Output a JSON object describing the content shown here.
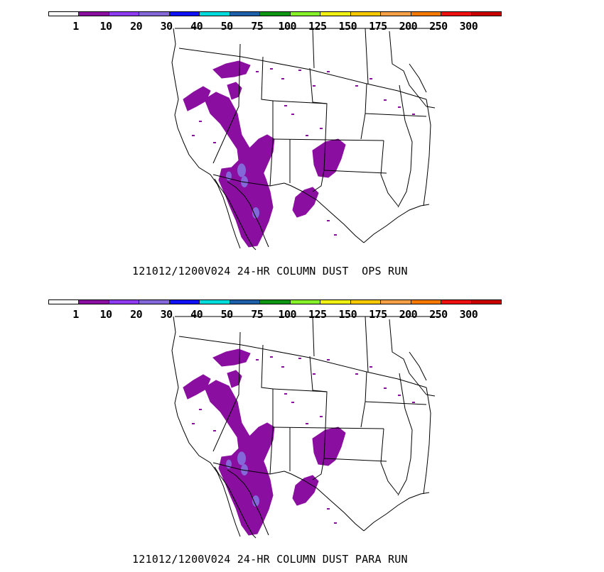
{
  "legend": {
    "tick_labels": [
      "1",
      "10",
      "20",
      "30",
      "40",
      "50",
      "75",
      "100",
      "125",
      "150",
      "175",
      "200",
      "250",
      "300"
    ],
    "colors": [
      "#ffffff",
      "#8a0ea0",
      "#8f3bf0",
      "#8467d8",
      "#1010f5",
      "#00dcdc",
      "#1d5fa8",
      "#0c9614",
      "#86f02a",
      "#f0f014",
      "#f5c800",
      "#f5a046",
      "#f57800",
      "#ee1010",
      "#c80000"
    ]
  },
  "panels": [
    {
      "caption": "121012/1200V024 24-HR COLUMN DUST  OPS RUN"
    },
    {
      "caption": "121012/1200V024 24-HR COLUMN DUST PARA RUN"
    }
  ]
}
